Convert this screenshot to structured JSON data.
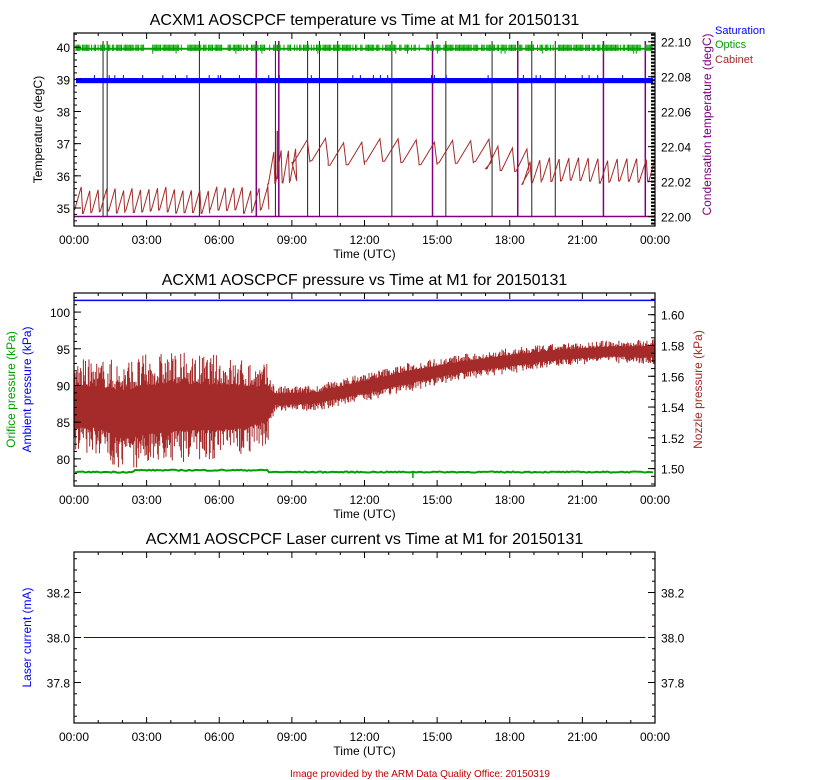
{
  "colors": {
    "saturation": "#0000ff",
    "optics": "#00a000",
    "cabinet": "#a52a2a",
    "condensation": "#800080",
    "ambient": "#0000ff",
    "orifice": "#00a000",
    "nozzle": "#a52a2a",
    "laser": "#0000ff",
    "footer": "#c00000"
  },
  "footer": "Image provided by the ARM Data Quality Office: 20150319",
  "chart_data": [
    {
      "type": "line",
      "title": "ACXM1 AOSCPCF temperature vs Time at M1 for 20150131",
      "xlabel": "Time (UTC)",
      "ylabel": "Temperature (degC)",
      "ylabel_right": "Condensation temperature (degC)",
      "x_ticks": [
        "00:00",
        "03:00",
        "06:00",
        "09:00",
        "12:00",
        "15:00",
        "18:00",
        "21:00",
        "00:00"
      ],
      "xlim_hours": [
        0,
        24
      ],
      "ylim": [
        34.44,
        40.44
      ],
      "y_ticks": [
        "35",
        "36",
        "37",
        "38",
        "39",
        "40"
      ],
      "ylim_right": [
        21.9946,
        22.105
      ],
      "y_ticks_right": [
        "22.00",
        "22.02",
        "22.04",
        "22.06",
        "22.08",
        "22.10"
      ],
      "legend": [
        "Saturation",
        "Optics",
        "Cabinet"
      ],
      "legend_position": "top-right-outside",
      "series": [
        {
          "name": "Saturation",
          "axis": "left",
          "mean": 38.95,
          "band": [
            38.88,
            39.04
          ]
        },
        {
          "name": "Optics",
          "axis": "left",
          "mean": 39.95,
          "band": [
            39.88,
            40.08
          ]
        },
        {
          "name": "Cabinet",
          "axis": "left",
          "segments": [
            {
              "from": 0,
              "to": 8,
              "low": 34.9,
              "high": 35.6,
              "period_h": 0.35
            },
            {
              "from": 8,
              "to": 9,
              "low": 35.8,
              "high": 36.8,
              "period_h": 0.3
            },
            {
              "from": 9,
              "to": 17,
              "low": 36.4,
              "high": 37.1,
              "period_h": 0.75
            },
            {
              "from": 17,
              "to": 18.5,
              "low": 36.2,
              "high": 36.9,
              "period_h": 0.6
            },
            {
              "from": 18.5,
              "to": 24,
              "low": 35.8,
              "high": 36.5,
              "period_h": 0.4
            }
          ]
        },
        {
          "name": "Condensation temperature",
          "axis": "right",
          "baseline": 22.0,
          "spikes_hours_black": [
            1.2,
            1.37,
            5.18,
            8.32,
            9.65,
            10.14,
            10.89,
            13.13,
            15.36,
            17.27,
            18.91,
            19.88
          ],
          "spikes_hours_purple": [
            7.53,
            8.46,
            14.81,
            18.33,
            21.87,
            23.6
          ]
        }
      ]
    },
    {
      "type": "line",
      "title": "ACXM1 AOSCPCF pressure vs Time at M1 for 20150131",
      "xlabel": "Time (UTC)",
      "ylabel": "Ambient pressure (kPa)",
      "ylabel2": "Orifice pressure (kPa)",
      "ylabel_right": "Nozzle pressure (kPa)",
      "x_ticks": [
        "00:00",
        "03:00",
        "06:00",
        "09:00",
        "12:00",
        "15:00",
        "18:00",
        "21:00",
        "00:00"
      ],
      "xlim_hours": [
        0,
        24
      ],
      "ylim": [
        76.3,
        102.6
      ],
      "y_ticks": [
        "80",
        "85",
        "90",
        "95",
        "100"
      ],
      "ylim_right": [
        1.4887,
        1.6141
      ],
      "y_ticks_right": [
        "1.50",
        "1.52",
        "1.54",
        "1.56",
        "1.58",
        "1.60"
      ],
      "series": [
        {
          "name": "Ambient pressure",
          "axis": "left",
          "value": 101.6
        },
        {
          "name": "Orifice pressure",
          "axis": "left",
          "value": 78.2
        },
        {
          "name": "Nozzle pressure",
          "axis": "right",
          "points": [
            [
              0,
              1.54,
              0.03
            ],
            [
              1,
              1.54,
              0.03
            ],
            [
              2,
              1.535,
              0.035
            ],
            [
              3,
              1.538,
              0.035
            ],
            [
              4,
              1.54,
              0.035
            ],
            [
              5,
              1.54,
              0.033
            ],
            [
              6,
              1.54,
              0.033
            ],
            [
              7,
              1.54,
              0.03
            ],
            [
              8,
              1.542,
              0.025
            ],
            [
              8.3,
              1.545,
              0.008
            ],
            [
              10,
              1.546,
              0.008
            ],
            [
              12,
              1.553,
              0.009
            ],
            [
              14,
              1.56,
              0.009
            ],
            [
              16,
              1.566,
              0.008
            ],
            [
              18,
              1.57,
              0.008
            ],
            [
              20,
              1.574,
              0.007
            ],
            [
              22,
              1.576,
              0.007
            ],
            [
              24,
              1.576,
              0.008
            ]
          ]
        }
      ]
    },
    {
      "type": "line",
      "title": "ACXM1 AOSCPCF Laser current vs Time at M1 for 20150131",
      "xlabel": "Time (UTC)",
      "ylabel": "Laser current (mA)",
      "x_ticks": [
        "00:00",
        "03:00",
        "06:00",
        "09:00",
        "12:00",
        "15:00",
        "18:00",
        "21:00",
        "00:00"
      ],
      "xlim_hours": [
        0,
        24
      ],
      "ylim": [
        37.62,
        38.38
      ],
      "y_ticks": [
        "37.8",
        "38.0",
        "38.2"
      ],
      "series": [
        {
          "name": "Laser current",
          "axis": "left",
          "value": 38.0,
          "from_h": 0.4,
          "to_h": 23.6
        }
      ]
    }
  ]
}
